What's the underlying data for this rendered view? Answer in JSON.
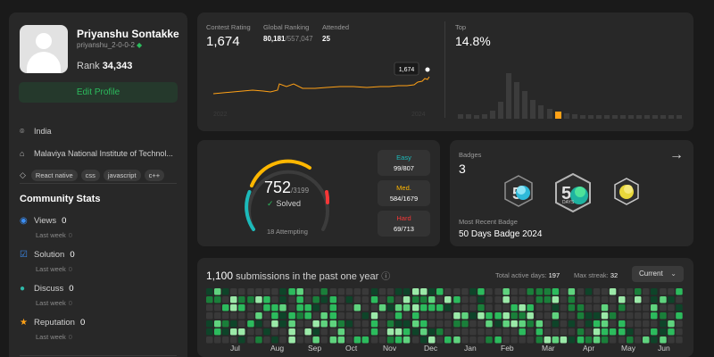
{
  "profile": {
    "name": "Priyanshu Sontakke",
    "username": "priyanshu_2-0-0-2",
    "rank_label": "Rank",
    "rank_value": "34,343",
    "edit_label": "Edit Profile",
    "location": "India",
    "institute": "Malaviya National Institute of Technol...",
    "skills": [
      "React native",
      "css",
      "javascript",
      "c++"
    ]
  },
  "community": {
    "title": "Community Stats",
    "stats": [
      {
        "label": "Views",
        "value": "0",
        "sub_label": "Last week",
        "sub_value": "0",
        "icon": "eye-icon",
        "color": "#3b8ef5"
      },
      {
        "label": "Solution",
        "value": "0",
        "sub_label": "Last week",
        "sub_value": "0",
        "icon": "check-square-icon",
        "color": "#3b8ef5"
      },
      {
        "label": "Discuss",
        "value": "0",
        "sub_label": "Last week",
        "sub_value": "0",
        "icon": "chat-icon",
        "color": "#2fb9a9"
      },
      {
        "label": "Reputation",
        "value": "0",
        "sub_label": "Last week",
        "sub_value": "0",
        "icon": "star-icon",
        "color": "#ffa116"
      }
    ]
  },
  "contest": {
    "rating_label": "Contest Rating",
    "rating_value": "1,674",
    "global_label": "Global Ranking",
    "global_value": "80,181",
    "global_total": "/557,047",
    "attended_label": "Attended",
    "attended_value": "25",
    "tooltip": "1,674",
    "top_label": "Top",
    "top_value": "14.8%",
    "axis_left": "2022",
    "axis_right": "2024",
    "accent": "#ffa116"
  },
  "solved": {
    "count": "752",
    "total": "/3199",
    "label": "Solved",
    "check": "✓",
    "attempting": "18 Attempting",
    "difficulties": [
      {
        "name": "Easy",
        "value": "99/807",
        "color": "#1cbaba"
      },
      {
        "name": "Med.",
        "value": "584/1679",
        "color": "#ffb700"
      },
      {
        "name": "Hard",
        "value": "69/713",
        "color": "#f63737"
      }
    ]
  },
  "badges": {
    "label": "Badges",
    "count": "3",
    "recent_label": "Most Recent Badge",
    "recent_name": "50 Days Badge 2024"
  },
  "submissions": {
    "count": "1,100",
    "text": "submissions in the past one year",
    "active_label": "Total active days:",
    "active_value": "197",
    "streak_label": "Max streak:",
    "streak_value": "32",
    "dropdown": "Current",
    "months": [
      "Jul",
      "Aug",
      "Sep",
      "Oct",
      "Nov",
      "Dec",
      "Jan",
      "Feb",
      "Mar",
      "Apr",
      "May",
      "Jun"
    ]
  }
}
